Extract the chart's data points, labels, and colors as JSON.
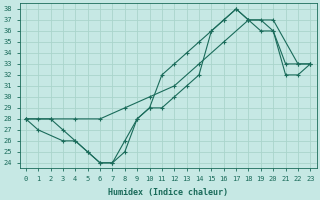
{
  "title": "",
  "xlabel": "Humidex (Indice chaleur)",
  "ylabel": "",
  "xlim": [
    -0.5,
    23.5
  ],
  "ylim": [
    23.5,
    38.5
  ],
  "xticks": [
    0,
    1,
    2,
    3,
    4,
    5,
    6,
    7,
    8,
    9,
    10,
    11,
    12,
    13,
    14,
    15,
    16,
    17,
    18,
    19,
    20,
    21,
    22,
    23
  ],
  "yticks": [
    24,
    25,
    26,
    27,
    28,
    29,
    30,
    31,
    32,
    33,
    34,
    35,
    36,
    37,
    38
  ],
  "bg_color": "#c6e8e4",
  "grid_color": "#aad4cc",
  "line_color": "#1a6b5a",
  "line1_x": [
    0,
    1,
    2,
    3,
    4,
    5,
    6,
    7,
    8,
    9,
    10,
    11,
    12,
    13,
    14,
    15,
    16,
    17,
    18,
    19,
    20,
    21,
    22,
    23
  ],
  "line1_y": [
    28,
    28,
    28,
    27,
    26,
    25,
    24,
    24,
    25,
    28,
    29,
    32,
    33,
    34,
    35,
    36,
    37,
    38,
    37,
    36,
    36,
    33,
    33,
    33
  ],
  "line2_x": [
    0,
    2,
    4,
    6,
    8,
    10,
    12,
    14,
    16,
    18,
    20,
    22,
    23
  ],
  "line2_y": [
    28,
    28,
    28,
    28,
    29,
    30,
    31,
    33,
    35,
    37,
    37,
    33,
    33
  ],
  "line3_x": [
    0,
    1,
    3,
    4,
    5,
    6,
    7,
    8,
    9,
    10,
    11,
    12,
    13,
    14,
    15,
    16,
    17,
    18,
    19,
    20,
    21,
    22,
    23
  ],
  "line3_y": [
    28,
    27,
    26,
    26,
    25,
    24,
    24,
    26,
    28,
    29,
    29,
    30,
    31,
    32,
    36,
    37,
    38,
    37,
    37,
    36,
    32,
    32,
    33
  ]
}
